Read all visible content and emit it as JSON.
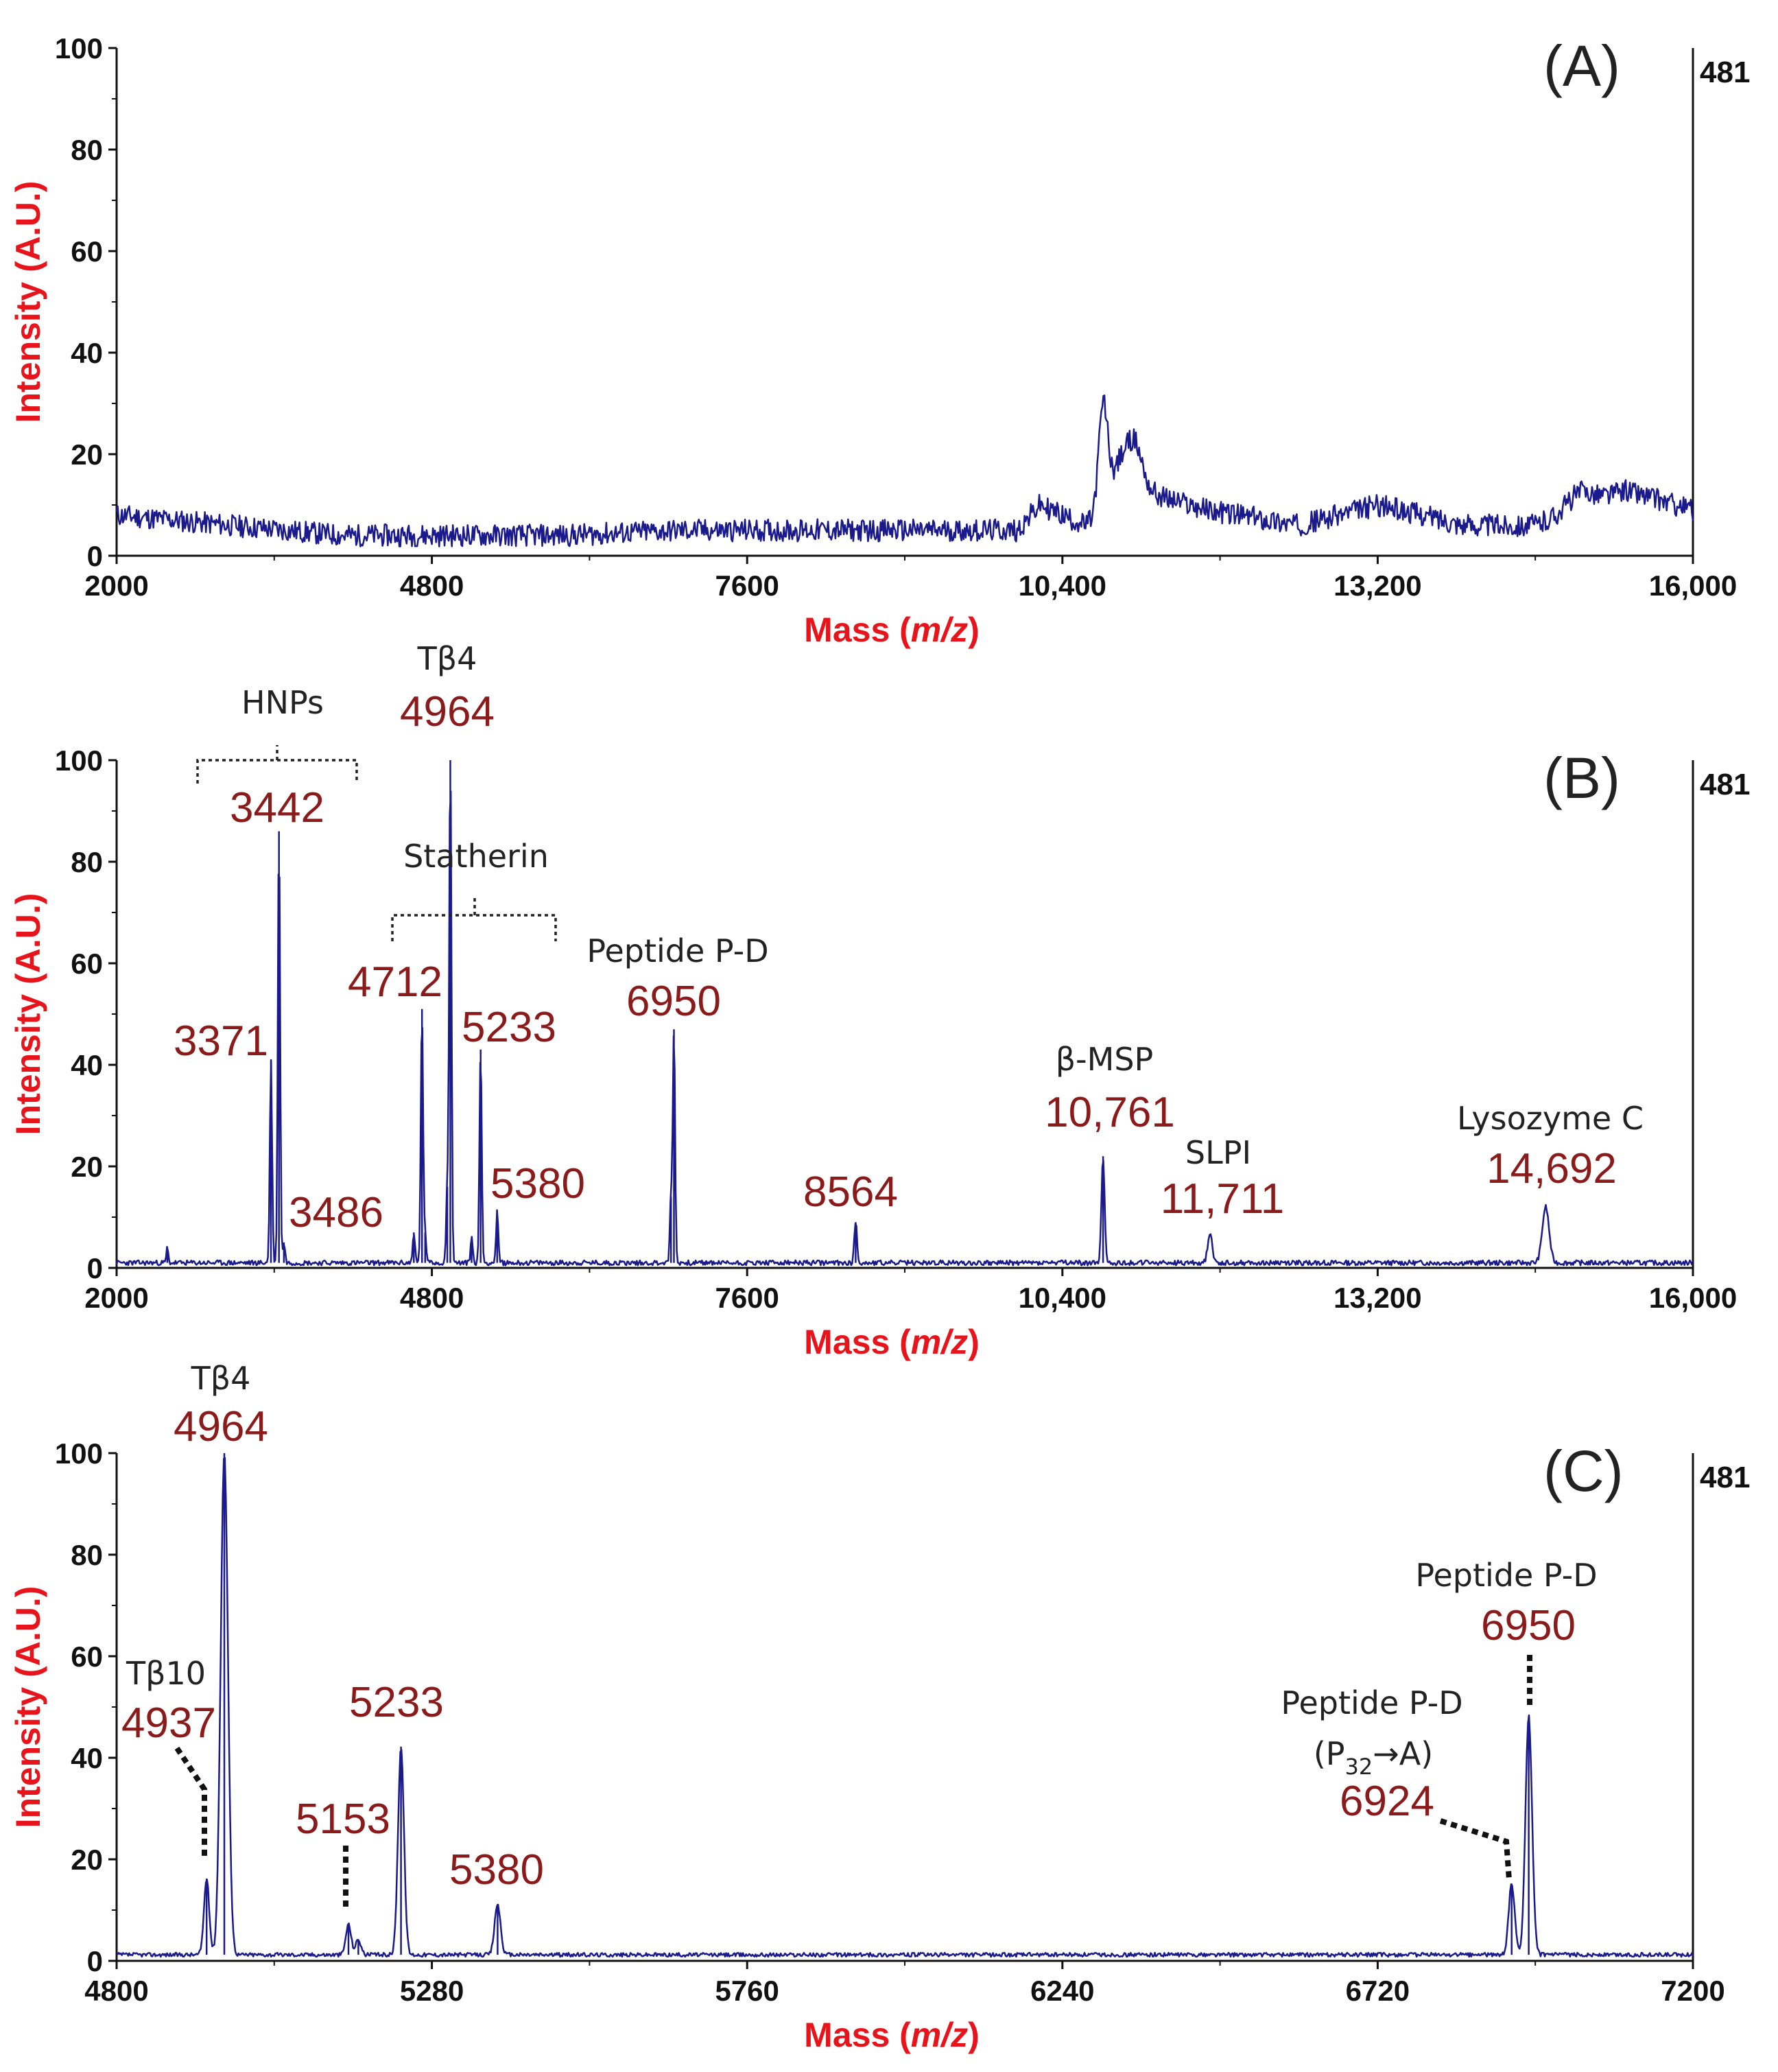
{
  "chart_data": [
    {
      "type": "line",
      "panel_label": "(A)",
      "xlabel_main": "Mass (",
      "xlabel_italic": "m/z",
      "xlabel_end": ")",
      "ylabel": "Intensity (A.U.)",
      "xlim": [
        2000,
        16000
      ],
      "ylim": [
        0,
        100
      ],
      "xticks": [
        2000,
        4800,
        7600,
        10400,
        13200,
        16000
      ],
      "xtick_labels": [
        "2000",
        "4800",
        "7600",
        "10,400",
        "13,200",
        "16,000"
      ],
      "yticks": [
        0,
        20,
        40,
        60,
        80,
        100
      ],
      "ytick_labels": [
        "0",
        "20",
        "40",
        "60",
        "80",
        "100"
      ],
      "right_value": "481",
      "line_color": "#1a1a8c",
      "baseline": [
        [
          2000,
          8
        ],
        [
          3000,
          6
        ],
        [
          4000,
          4
        ],
        [
          5000,
          4
        ],
        [
          6000,
          4
        ],
        [
          7000,
          5
        ],
        [
          8000,
          5
        ],
        [
          9000,
          5
        ],
        [
          10000,
          5
        ],
        [
          10200,
          10
        ],
        [
          10600,
          6
        ],
        [
          11200,
          12
        ],
        [
          11700,
          9
        ],
        [
          12500,
          6
        ],
        [
          13200,
          10
        ],
        [
          14000,
          6
        ],
        [
          14600,
          6
        ],
        [
          15400,
          13
        ],
        [
          16000,
          9
        ]
      ],
      "noise": 2.2,
      "peaks": [
        {
          "x": 10761,
          "h": 20,
          "w": 40
        },
        {
          "x": 10920,
          "h": 9,
          "w": 100
        },
        {
          "x": 11050,
          "h": 8,
          "w": 70
        },
        {
          "x": 15000,
          "h": 3,
          "w": 120
        }
      ],
      "annotations": []
    },
    {
      "type": "line",
      "panel_label": "(B)",
      "xlabel_main": "Mass (",
      "xlabel_italic": "m/z",
      "xlabel_end": ")",
      "ylabel": "Intensity (A.U.)",
      "xlim": [
        2000,
        16000
      ],
      "ylim": [
        0,
        100
      ],
      "xticks": [
        2000,
        4800,
        7600,
        10400,
        13200,
        16000
      ],
      "xtick_labels": [
        "2000",
        "4800",
        "7600",
        "10,400",
        "13,200",
        "16,000"
      ],
      "yticks": [
        0,
        20,
        40,
        60,
        80,
        100
      ],
      "ytick_labels": [
        "0",
        "20",
        "40",
        "60",
        "80",
        "100"
      ],
      "right_value": "481",
      "line_color": "#1a1a8c",
      "baseline": [
        [
          2000,
          1
        ],
        [
          16000,
          1
        ]
      ],
      "noise": 0.5,
      "peaks": [
        {
          "x": 2450,
          "h": 3,
          "w": 8
        },
        {
          "x": 3371,
          "h": 40,
          "w": 10
        },
        {
          "x": 3442,
          "h": 85,
          "w": 10
        },
        {
          "x": 3486,
          "h": 4,
          "w": 10
        },
        {
          "x": 4640,
          "h": 6,
          "w": 10
        },
        {
          "x": 4712,
          "h": 50,
          "w": 10
        },
        {
          "x": 4740,
          "h": 6,
          "w": 10
        },
        {
          "x": 4937,
          "h": 15,
          "w": 10
        },
        {
          "x": 4964,
          "h": 100,
          "w": 10
        },
        {
          "x": 5153,
          "h": 5,
          "w": 10
        },
        {
          "x": 5233,
          "h": 42,
          "w": 10
        },
        {
          "x": 5380,
          "h": 10,
          "w": 10
        },
        {
          "x": 6924,
          "h": 13,
          "w": 10
        },
        {
          "x": 6950,
          "h": 46,
          "w": 10
        },
        {
          "x": 8564,
          "h": 8,
          "w": 12
        },
        {
          "x": 10761,
          "h": 21,
          "w": 14
        },
        {
          "x": 11711,
          "h": 6,
          "w": 20
        },
        {
          "x": 14692,
          "h": 11,
          "w": 30
        }
      ],
      "annotations": [
        {
          "name": "HNPs",
          "value": "3442",
          "x": 3442,
          "y": 87
        },
        {
          "name": "",
          "value": "3371",
          "x": 3371,
          "y": 42
        },
        {
          "name": "",
          "value": "3486",
          "x": 3486,
          "y": 6
        },
        {
          "name": "Tβ4",
          "value": "4964",
          "x": 4964,
          "y": 102
        },
        {
          "name": "",
          "value": "4712",
          "x": 4712,
          "y": 52
        },
        {
          "name": "Statherin",
          "value": "",
          "x": 4712,
          "y": 52
        },
        {
          "name": "",
          "value": "5233",
          "x": 5233,
          "y": 44
        },
        {
          "name": "",
          "value": "5380",
          "x": 5380,
          "y": 12
        },
        {
          "name": "Peptide P-D",
          "value": "6950",
          "x": 6950,
          "y": 48
        },
        {
          "name": "",
          "value": "8564",
          "x": 8564,
          "y": 10
        },
        {
          "name": "β-MSP",
          "value": "10,761",
          "x": 10761,
          "y": 23
        },
        {
          "name": "SLPI",
          "value": "11,711",
          "x": 11711,
          "y": 8
        },
        {
          "name": "Lysozyme C",
          "value": "14,692",
          "x": 14692,
          "y": 13
        }
      ]
    },
    {
      "type": "line",
      "panel_label": "(C)",
      "xlabel_main": "Mass (",
      "xlabel_italic": "m/z",
      "xlabel_end": ")",
      "ylabel": "Intensity (A.U.)",
      "xlim": [
        4800,
        7200
      ],
      "ylim": [
        0,
        100
      ],
      "xticks": [
        4800,
        5280,
        5760,
        6240,
        6720,
        7200
      ],
      "xtick_labels": [
        "4800",
        "5280",
        "5760",
        "6240",
        "6720",
        "7200"
      ],
      "yticks": [
        0,
        20,
        40,
        60,
        80,
        100
      ],
      "ytick_labels": [
        "0",
        "20",
        "40",
        "60",
        "80",
        "100"
      ],
      "right_value": "481",
      "line_color": "#1a1a8c",
      "baseline": [
        [
          4800,
          1.2
        ],
        [
          7200,
          1.2
        ]
      ],
      "noise": 0.4,
      "peaks": [
        {
          "x": 4937,
          "h": 15,
          "w": 4
        },
        {
          "x": 4964,
          "h": 99,
          "w": 5.5
        },
        {
          "x": 5153,
          "h": 6,
          "w": 4
        },
        {
          "x": 5168,
          "h": 3,
          "w": 4
        },
        {
          "x": 5233,
          "h": 41,
          "w": 4.5
        },
        {
          "x": 5380,
          "h": 10,
          "w": 4.5
        },
        {
          "x": 6924,
          "h": 14,
          "w": 4.5
        },
        {
          "x": 6950,
          "h": 47,
          "w": 5
        }
      ],
      "annotations": [
        {
          "name": "Tβ4",
          "value": "4964",
          "x": 4964,
          "y": 101
        },
        {
          "name": "Tβ10",
          "value": "4937",
          "x": 4937,
          "y": 17
        },
        {
          "name": "",
          "value": "5153",
          "x": 5153,
          "y": 8
        },
        {
          "name": "",
          "value": "5233",
          "x": 5233,
          "y": 43
        },
        {
          "name": "",
          "value": "5380",
          "x": 5380,
          "y": 12
        },
        {
          "name": "Peptide P-D",
          "value": "6950",
          "x": 6950,
          "y": 49
        },
        {
          "name": "Peptide P-D",
          "value": "6924",
          "x": 6924,
          "y": 16,
          "mod_p": "(P",
          "mod_sub": "32",
          "mod_rest": "→A)"
        }
      ]
    }
  ]
}
